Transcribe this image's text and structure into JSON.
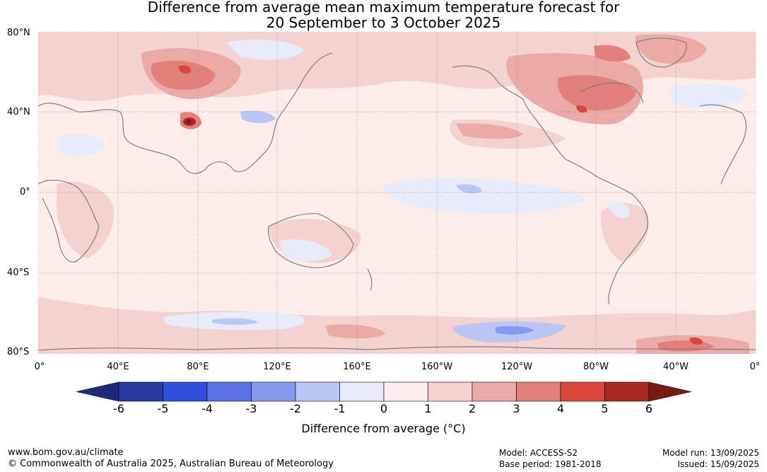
{
  "title": {
    "line1": "Difference from average mean maximum temperature forecast for",
    "line2": "20 September to 3 October 2025"
  },
  "map": {
    "lat_labels": [
      "80°N",
      "40°N",
      "0°",
      "40°S",
      "80°S"
    ],
    "lon_labels": [
      "0°",
      "40°E",
      "80°E",
      "120°E",
      "160°E",
      "160°W",
      "120°W",
      "80°W",
      "40°W",
      "0°"
    ]
  },
  "colorbar": {
    "ticks": [
      "-6",
      "-5",
      "-4",
      "-3",
      "-2",
      "-1",
      "0",
      "1",
      "2",
      "3",
      "4",
      "5",
      "6"
    ],
    "colors": [
      "#2a3b9e",
      "#3050dc",
      "#5a72e6",
      "#8898ec",
      "#bcc6f4",
      "#e8ecfa",
      "#fcecea",
      "#f4d2cf",
      "#ecaaa6",
      "#e4807a",
      "#d8473c",
      "#a92a22"
    ],
    "low_extend_color": "#1c2a7c",
    "high_extend_color": "#7a1c16",
    "label": "Difference from average (°C)"
  },
  "footer": {
    "url": "www.bom.gov.au/climate",
    "copyright": "© Commonwealth of Australia 2025, Australian Bureau of Meteorology",
    "model": "Model: ACCESS-S2",
    "base_period": "Base period: 1981-2018",
    "model_run": "Model run: 13/09/2025",
    "issued": "Issued: 15/09/2025"
  }
}
